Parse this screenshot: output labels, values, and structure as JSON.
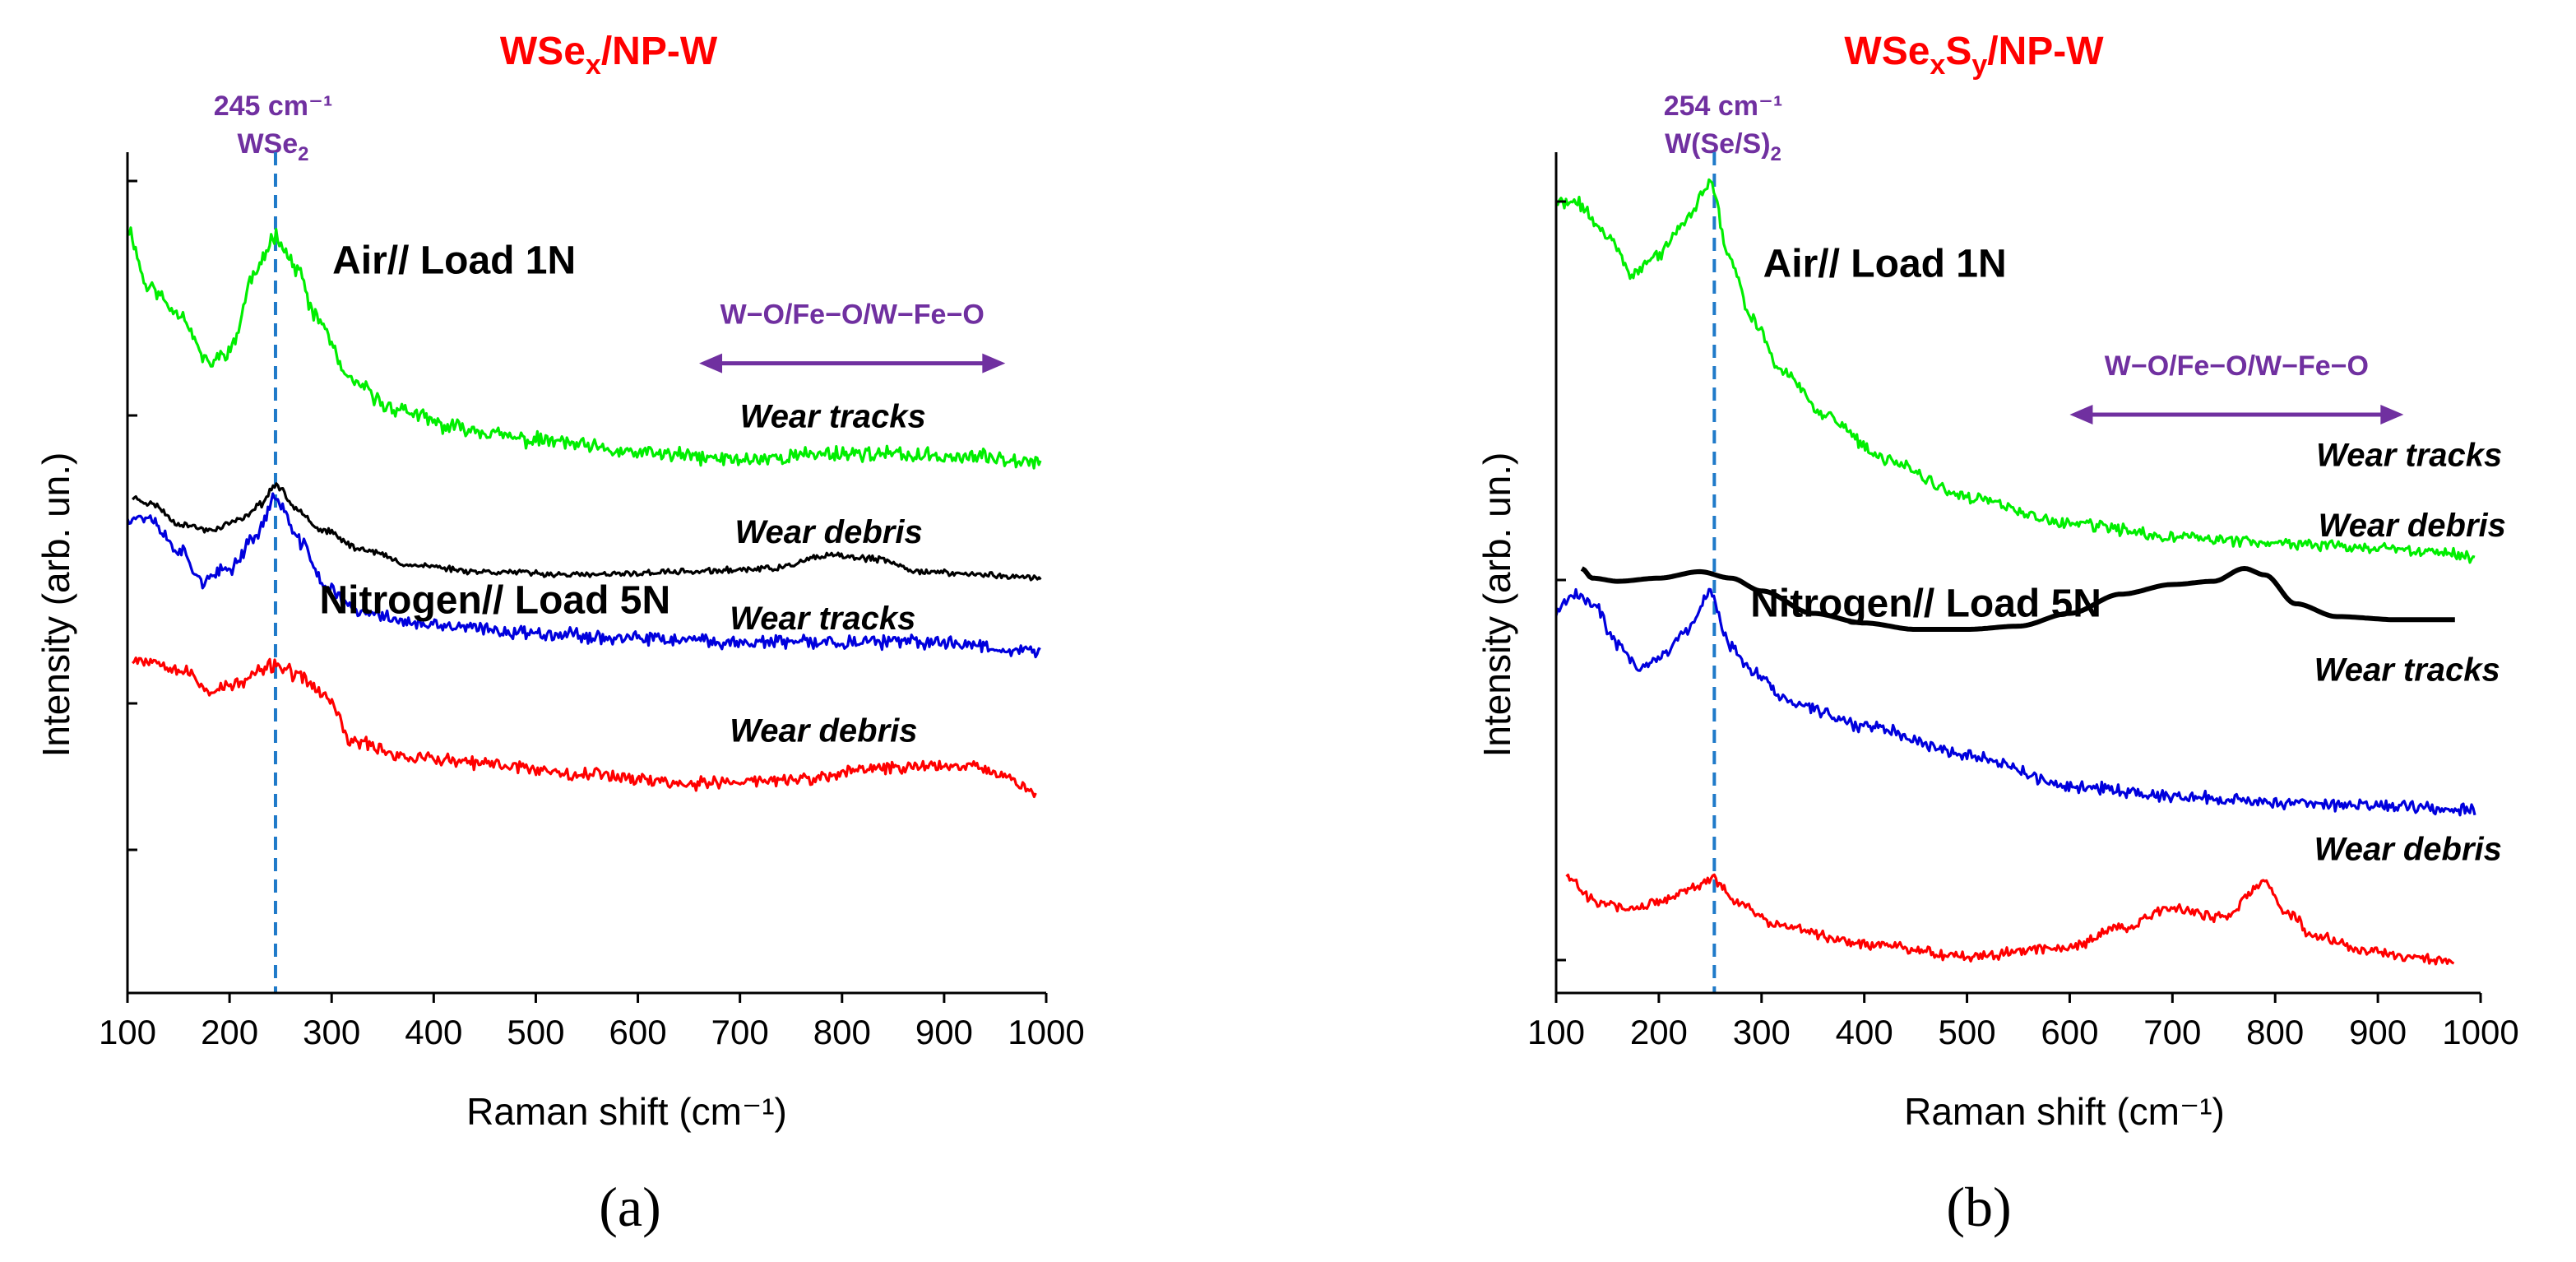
{
  "colors": {
    "green": "#00ee00",
    "black": "#000000",
    "blue": "#0000dd",
    "red": "#ff0000",
    "purple": "#7030a0",
    "dash": "#1f7ac9",
    "title": "#ff0000"
  },
  "chart_data": [
    {
      "type": "line",
      "panel_label": "(a)",
      "title": {
        "main": "WSe",
        "sub": "x",
        "suffix": "/NP-W"
      },
      "xlabel": "Raman shift (cm⁻¹)",
      "ylabel": "Intensity (arb. un.)",
      "xlim": [
        100,
        1000
      ],
      "xticks": [
        "100",
        "200",
        "300",
        "400",
        "500",
        "600",
        "700",
        "800",
        "900",
        "1000"
      ],
      "ylim": [
        0,
        10
      ],
      "peak": {
        "x": 245,
        "label": "245 cm⁻¹",
        "species_main": "WSe",
        "species_sub": "2"
      },
      "conditions": [
        {
          "text": "Air// Load 1N",
          "x": 420,
          "y": 8.6
        },
        {
          "text": "Nitrogen// Load 5N",
          "x": 460,
          "y": 3.3
        }
      ],
      "bond_range": {
        "text": "W−O/Fe−O/W−Fe−O",
        "from": 660,
        "to": 960,
        "y": 7.2
      },
      "series": [
        {
          "name": "Wear tracks",
          "color": "green",
          "noise": 0.09,
          "seed": 11,
          "points": [
            [
              100,
              9.3
            ],
            [
              120,
              8.4
            ],
            [
              150,
              8.0
            ],
            [
              180,
              7.2
            ],
            [
              200,
              7.4
            ],
            [
              225,
              8.6
            ],
            [
              245,
              9.2
            ],
            [
              265,
              8.7
            ],
            [
              285,
              7.9
            ],
            [
              320,
              6.9
            ],
            [
              360,
              6.5
            ],
            [
              420,
              6.2
            ],
            [
              500,
              6.0
            ],
            [
              600,
              5.8
            ],
            [
              700,
              5.7
            ],
            [
              800,
              5.8
            ],
            [
              900,
              5.75
            ],
            [
              995,
              5.7
            ]
          ],
          "label": "Wear tracks",
          "label_x": 700,
          "label_y": 6.2
        },
        {
          "name": "Wear debris",
          "color": "black",
          "noise": 0.035,
          "seed": 23,
          "points": [
            [
              105,
              5.1
            ],
            [
              125,
              5.0
            ],
            [
              150,
              4.7
            ],
            [
              180,
              4.6
            ],
            [
              210,
              4.75
            ],
            [
              230,
              5.0
            ],
            [
              245,
              5.3
            ],
            [
              265,
              4.95
            ],
            [
              290,
              4.6
            ],
            [
              330,
              4.3
            ],
            [
              380,
              4.05
            ],
            [
              450,
              3.95
            ],
            [
              550,
              3.9
            ],
            [
              650,
              3.95
            ],
            [
              730,
              4.0
            ],
            [
              790,
              4.2
            ],
            [
              830,
              4.15
            ],
            [
              880,
              3.95
            ],
            [
              940,
              3.9
            ],
            [
              995,
              3.85
            ]
          ],
          "label": "Wear debris",
          "label_x": 695,
          "label_y": 4.4
        },
        {
          "name": "Wear tracks",
          "color": "blue",
          "noise": 0.08,
          "seed": 37,
          "points": [
            [
              100,
              4.8
            ],
            [
              120,
              4.8
            ],
            [
              150,
              4.3
            ],
            [
              175,
              3.8
            ],
            [
              200,
              4.0
            ],
            [
              225,
              4.5
            ],
            [
              245,
              5.1
            ],
            [
              270,
              4.4
            ],
            [
              295,
              3.7
            ],
            [
              330,
              3.3
            ],
            [
              400,
              3.1
            ],
            [
              500,
              3.0
            ],
            [
              600,
              2.9
            ],
            [
              700,
              2.85
            ],
            [
              800,
              2.85
            ],
            [
              900,
              2.85
            ],
            [
              995,
              2.7
            ]
          ],
          "label": "Wear tracks",
          "label_x": 690,
          "label_y": 3.05
        },
        {
          "name": "Wear debris",
          "color": "red",
          "noise": 0.08,
          "seed": 53,
          "points": [
            [
              105,
              2.6
            ],
            [
              130,
              2.55
            ],
            [
              155,
              2.4
            ],
            [
              180,
              2.1
            ],
            [
              210,
              2.2
            ],
            [
              230,
              2.4
            ],
            [
              245,
              2.5
            ],
            [
              270,
              2.3
            ],
            [
              295,
              2.0
            ],
            [
              320,
              1.3
            ],
            [
              380,
              1.05
            ],
            [
              450,
              0.95
            ],
            [
              550,
              0.8
            ],
            [
              650,
              0.65
            ],
            [
              750,
              0.7
            ],
            [
              850,
              0.9
            ],
            [
              930,
              0.95
            ],
            [
              960,
              0.75
            ],
            [
              990,
              0.5
            ]
          ],
          "label": "Wear debris",
          "label_x": 690,
          "label_y": 1.3
        }
      ]
    },
    {
      "type": "line",
      "panel_label": "(b)",
      "title": {
        "main": "WSe",
        "sub": "x",
        "mid": "S",
        "sub2": "y",
        "suffix": "/NP-W"
      },
      "xlabel": "Raman shift (cm⁻¹)",
      "ylabel": "Intensity (arb. un.)",
      "xlim": [
        100,
        1000
      ],
      "xticks": [
        "100",
        "200",
        "300",
        "400",
        "500",
        "600",
        "700",
        "800",
        "900",
        "1000"
      ],
      "ylim": [
        0,
        10
      ],
      "peak": {
        "x": 254,
        "label": "254 cm⁻¹",
        "species_main": "W(Se/S)",
        "species_sub": "2"
      },
      "conditions": [
        {
          "text": "Air// Load 1N",
          "x": 420,
          "y": 8.55
        },
        {
          "text": "Nitrogen// Load 5N",
          "x": 460,
          "y": 3.25
        }
      ],
      "bond_range": {
        "text": "W−O/Fe−O/W−Fe−O",
        "from": 600,
        "to": 925,
        "y": 6.4
      },
      "series": [
        {
          "name": "Wear tracks",
          "color": "green",
          "noise": 0.07,
          "seed": 71,
          "points": [
            [
              100,
              9.7
            ],
            [
              120,
              9.7
            ],
            [
              150,
              9.2
            ],
            [
              175,
              8.6
            ],
            [
              200,
              8.9
            ],
            [
              225,
              9.4
            ],
            [
              250,
              10.0
            ],
            [
              270,
              8.8
            ],
            [
              290,
              7.9
            ],
            [
              320,
              7.1
            ],
            [
              360,
              6.4
            ],
            [
              420,
              5.7
            ],
            [
              500,
              5.1
            ],
            [
              600,
              4.7
            ],
            [
              700,
              4.5
            ],
            [
              800,
              4.4
            ],
            [
              900,
              4.3
            ],
            [
              995,
              4.2
            ]
          ],
          "label": "Wear tracks",
          "label_x": 840,
          "label_y": 5.6
        },
        {
          "name": "Wear debris",
          "color": "black",
          "noise": 0.0,
          "seed": 89,
          "points": [
            [
              125,
              4.0
            ],
            [
              135,
              3.85
            ],
            [
              160,
              3.8
            ],
            [
              200,
              3.85
            ],
            [
              240,
              3.95
            ],
            [
              270,
              3.85
            ],
            [
              300,
              3.65
            ],
            [
              350,
              3.3
            ],
            [
              400,
              3.15
            ],
            [
              450,
              3.05
            ],
            [
              500,
              3.05
            ],
            [
              550,
              3.1
            ],
            [
              600,
              3.3
            ],
            [
              650,
              3.6
            ],
            [
              700,
              3.75
            ],
            [
              740,
              3.8
            ],
            [
              770,
              4.0
            ],
            [
              790,
              3.9
            ],
            [
              820,
              3.45
            ],
            [
              860,
              3.25
            ],
            [
              920,
              3.2
            ],
            [
              975,
              3.2
            ]
          ],
          "label": "Wear debris",
          "label_x": 842,
          "label_y": 4.5
        },
        {
          "name": "Wear tracks",
          "color": "blue",
          "noise": 0.07,
          "seed": 101,
          "points": [
            [
              100,
              3.3
            ],
            [
              115,
              3.6
            ],
            [
              135,
              3.5
            ],
            [
              160,
              2.8
            ],
            [
              180,
              2.45
            ],
            [
              200,
              2.6
            ],
            [
              225,
              3.0
            ],
            [
              250,
              3.6
            ],
            [
              270,
              2.8
            ],
            [
              290,
              2.4
            ],
            [
              330,
              1.9
            ],
            [
              400,
              1.55
            ],
            [
              500,
              1.1
            ],
            [
              600,
              0.6
            ],
            [
              700,
              0.45
            ],
            [
              800,
              0.35
            ],
            [
              900,
              0.3
            ],
            [
              995,
              0.25
            ]
          ],
          "label": "Wear tracks",
          "label_x": 838,
          "label_y": 2.25
        },
        {
          "name": "Wear debris",
          "color": "red",
          "noise": 0.06,
          "seed": 127,
          "points": [
            [
              110,
              -0.8
            ],
            [
              140,
              -1.2
            ],
            [
              170,
              -1.3
            ],
            [
              200,
              -1.2
            ],
            [
              230,
              -1.0
            ],
            [
              254,
              -0.85
            ],
            [
              275,
              -1.2
            ],
            [
              320,
              -1.6
            ],
            [
              400,
              -1.85
            ],
            [
              500,
              -2.05
            ],
            [
              600,
              -1.9
            ],
            [
              650,
              -1.6
            ],
            [
              700,
              -1.3
            ],
            [
              750,
              -1.45
            ],
            [
              790,
              -0.9
            ],
            [
              810,
              -1.35
            ],
            [
              840,
              -1.75
            ],
            [
              900,
              -2.0
            ],
            [
              975,
              -2.15
            ]
          ],
          "label": "Wear debris",
          "label_x": 838,
          "label_y": -0.55
        }
      ]
    }
  ]
}
